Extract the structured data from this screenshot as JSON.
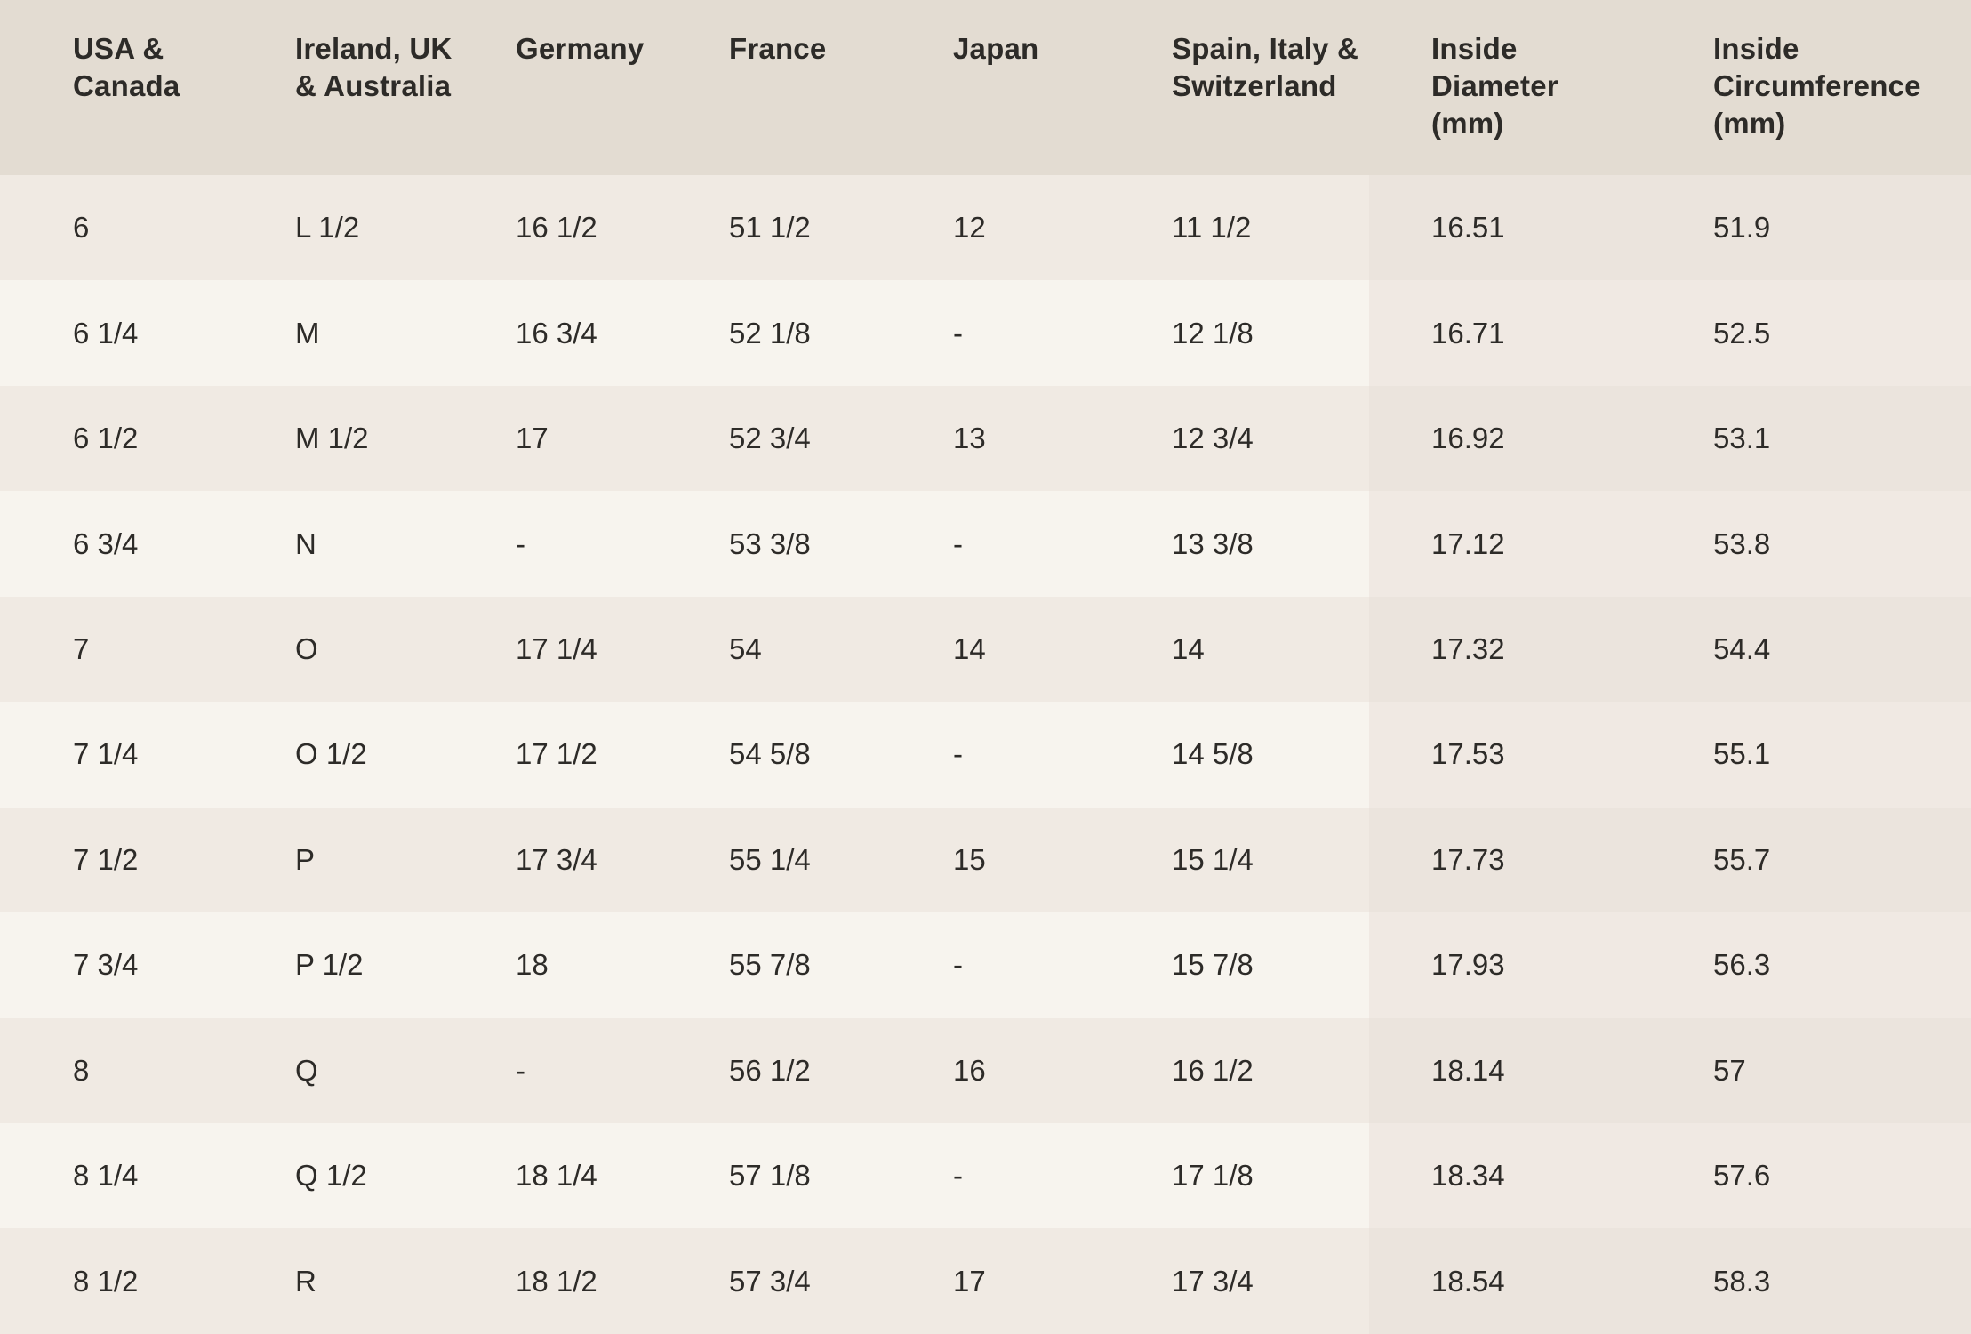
{
  "colors": {
    "header_bg": "#e3dcd2",
    "row_odd_bg": "#f0eae3",
    "row_even_bg": "#f7f4ee",
    "row_odd_highlight_bg": "#ebe4dd",
    "row_even_highlight_bg": "#f0e9e3",
    "text": "#2d2b28"
  },
  "table": {
    "columns": [
      {
        "id": "usa-canada",
        "label": "USA &\nCanada",
        "highlight": false
      },
      {
        "id": "ireland-uk-australia",
        "label": "Ireland, UK\n& Australia",
        "highlight": false
      },
      {
        "id": "germany",
        "label": "Germany",
        "highlight": false
      },
      {
        "id": "france",
        "label": "France",
        "highlight": false
      },
      {
        "id": "japan",
        "label": "Japan",
        "highlight": false
      },
      {
        "id": "spain-italy-switzerland",
        "label": "Spain, Italy &\nSwitzerland",
        "highlight": false
      },
      {
        "id": "inside-diameter-mm",
        "label": "Inside\nDiameter\n(mm)",
        "highlight": true
      },
      {
        "id": "inside-circumference-mm",
        "label": "Inside\nCircumference\n(mm)",
        "highlight": true
      }
    ],
    "rows": [
      [
        "6",
        "L 1/2",
        "16 1/2",
        "51 1/2",
        "12",
        "11 1/2",
        "16.51",
        "51.9"
      ],
      [
        "6 1/4",
        "M",
        "16 3/4",
        "52 1/8",
        "-",
        "12 1/8",
        "16.71",
        "52.5"
      ],
      [
        "6 1/2",
        "M 1/2",
        "17",
        "52 3/4",
        "13",
        "12 3/4",
        "16.92",
        "53.1"
      ],
      [
        "6 3/4",
        "N",
        "-",
        "53 3/8",
        "-",
        "13 3/8",
        "17.12",
        "53.8"
      ],
      [
        "7",
        "O",
        "17 1/4",
        "54",
        "14",
        "14",
        "17.32",
        "54.4"
      ],
      [
        "7 1/4",
        "O 1/2",
        "17 1/2",
        "54 5/8",
        "-",
        "14 5/8",
        "17.53",
        "55.1"
      ],
      [
        "7 1/2",
        "P",
        "17 3/4",
        "55 1/4",
        "15",
        "15 1/4",
        "17.73",
        "55.7"
      ],
      [
        "7 3/4",
        "P 1/2",
        "18",
        "55 7/8",
        "-",
        "15 7/8",
        "17.93",
        "56.3"
      ],
      [
        "8",
        "Q",
        "-",
        "56 1/2",
        "16",
        "16 1/2",
        "18.14",
        "57"
      ],
      [
        "8 1/4",
        "Q 1/2",
        "18 1/4",
        "57 1/8",
        "-",
        "17 1/8",
        "18.34",
        "57.6"
      ],
      [
        "8 1/2",
        "R",
        "18 1/2",
        "57 3/4",
        "17",
        "17 3/4",
        "18.54",
        "58.3"
      ]
    ]
  }
}
